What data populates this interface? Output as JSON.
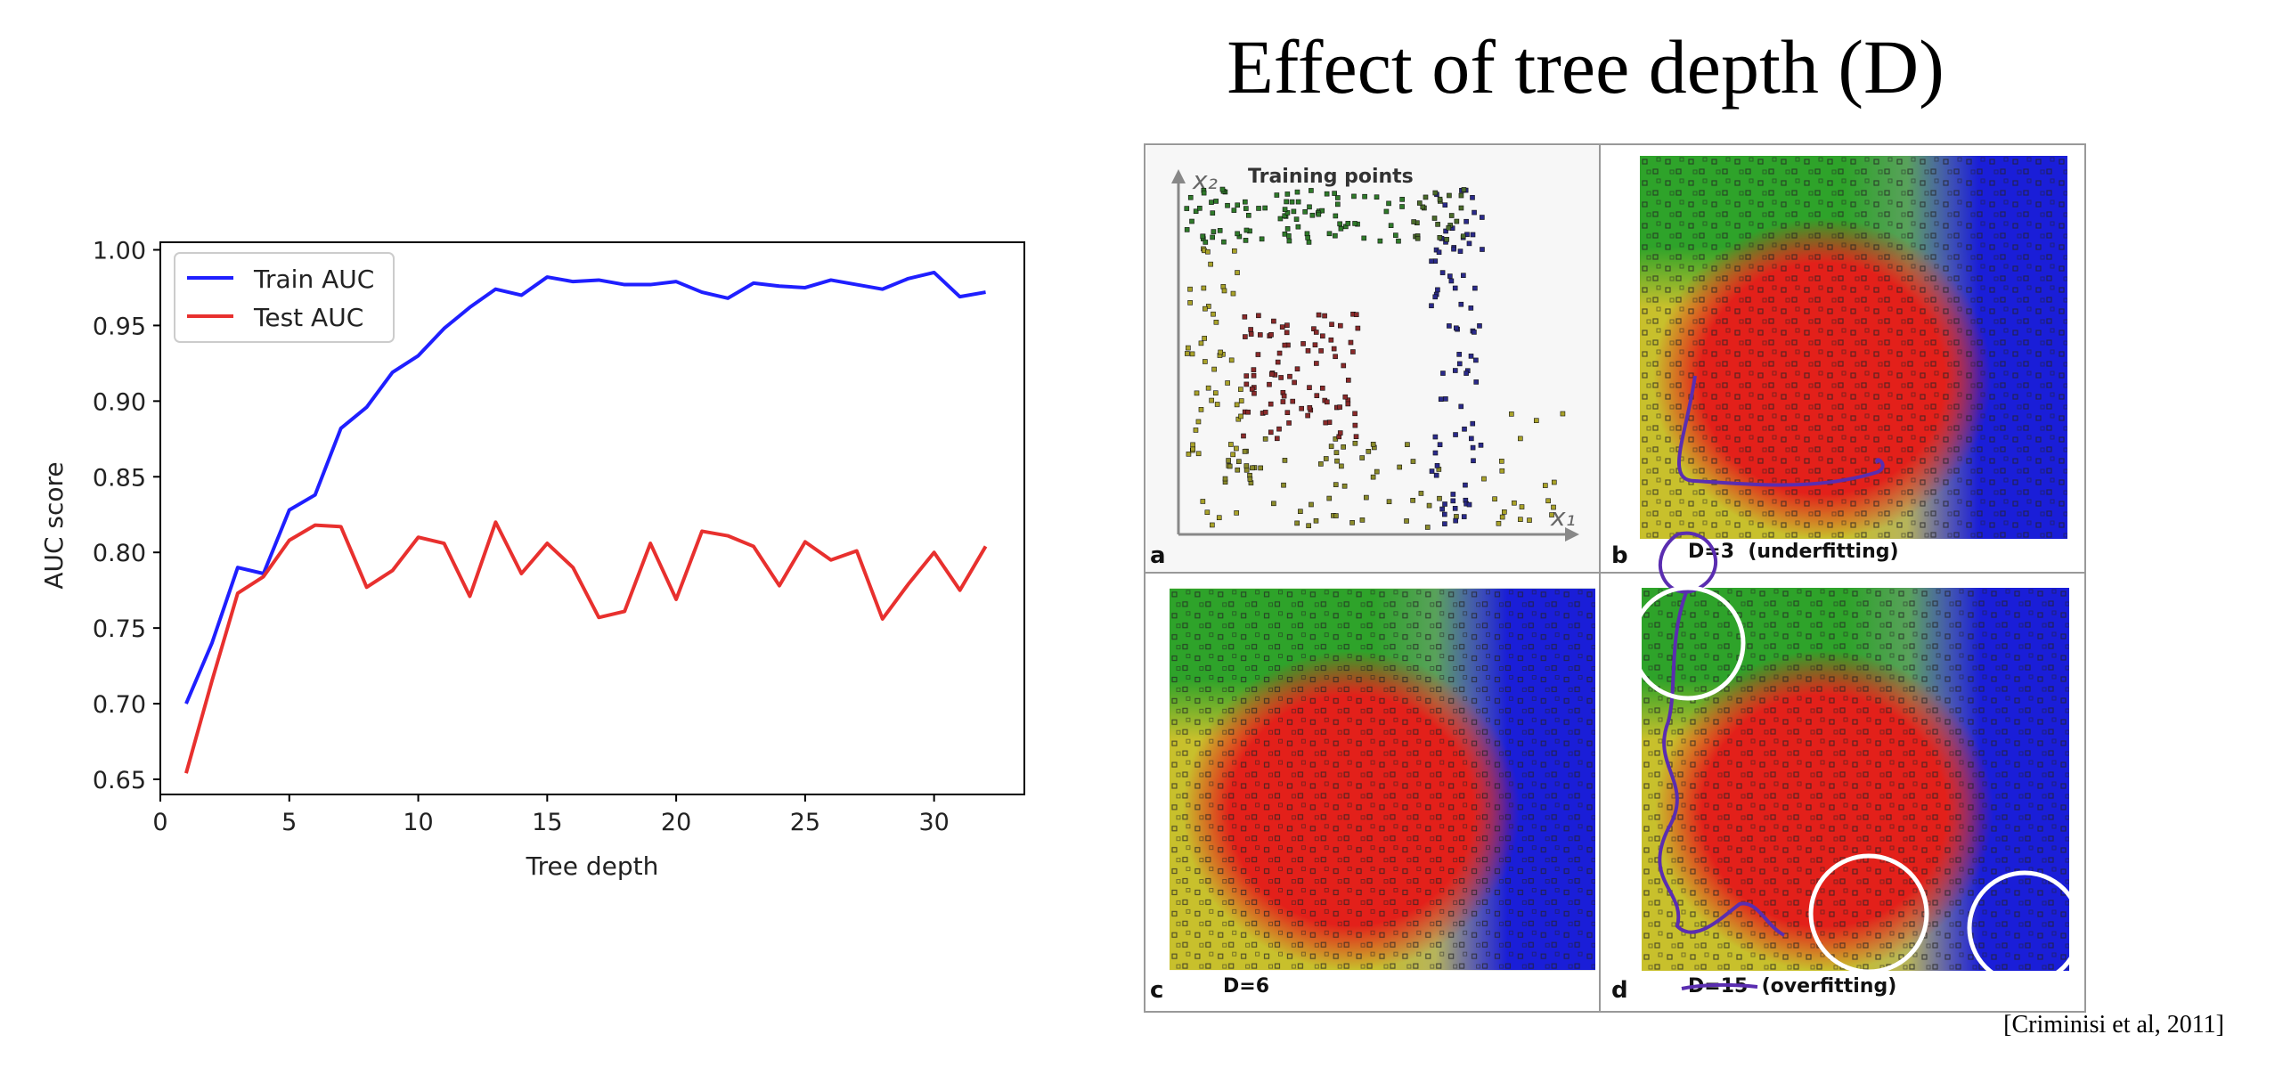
{
  "slide": {
    "title": "Effect of tree depth (D)",
    "citation": "[Criminisi et al, 2011]"
  },
  "chart_data": {
    "type": "line",
    "xlabel": "Tree depth",
    "ylabel": "AUC score",
    "xlim": [
      0,
      33.5
    ],
    "ylim": [
      0.64,
      1.005
    ],
    "xticks": [
      0,
      5,
      10,
      15,
      20,
      25,
      30
    ],
    "yticks": [
      0.65,
      0.7,
      0.75,
      0.8,
      0.85,
      0.9,
      0.95,
      1.0
    ],
    "grid": false,
    "legend_position": "upper-left",
    "x": [
      1,
      2,
      3,
      4,
      5,
      6,
      7,
      8,
      9,
      10,
      11,
      12,
      13,
      14,
      15,
      16,
      17,
      18,
      19,
      20,
      21,
      22,
      23,
      24,
      25,
      26,
      27,
      28,
      29,
      30,
      31,
      32
    ],
    "series": [
      {
        "name": "Train AUC",
        "color": "#1f1fff",
        "values": [
          0.7,
          0.74,
          0.79,
          0.786,
          0.828,
          0.838,
          0.882,
          0.896,
          0.919,
          0.93,
          0.948,
          0.962,
          0.974,
          0.97,
          0.982,
          0.979,
          0.98,
          0.977,
          0.977,
          0.979,
          0.972,
          0.968,
          0.978,
          0.976,
          0.975,
          0.98,
          0.977,
          0.974,
          0.981,
          0.985,
          0.969,
          0.972
        ]
      },
      {
        "name": "Test AUC",
        "color": "#e8302e",
        "values": [
          0.654,
          0.715,
          0.773,
          0.784,
          0.808,
          0.818,
          0.817,
          0.777,
          0.788,
          0.81,
          0.806,
          0.771,
          0.82,
          0.786,
          0.806,
          0.79,
          0.757,
          0.761,
          0.806,
          0.769,
          0.814,
          0.811,
          0.804,
          0.778,
          0.807,
          0.795,
          0.801,
          0.756,
          0.779,
          0.8,
          0.775,
          0.804
        ]
      }
    ]
  },
  "figure": {
    "panels": [
      {
        "letter": "a",
        "caption": "",
        "heading": "Training points"
      },
      {
        "letter": "b",
        "caption": "D=3  (underfitting)"
      },
      {
        "letter": "c",
        "caption": "D=6"
      },
      {
        "letter": "d",
        "caption": "D=15  (overfitting)"
      }
    ],
    "axis_x_label": "x₁",
    "axis_y_label": "x₂",
    "colors": {
      "green": "#2ea32a",
      "yellow": "#c8c02c",
      "red": "#e3201a",
      "blue": "#1a1ed8",
      "gray": "#9aa0a6",
      "annotation": "#5a2db0"
    }
  }
}
